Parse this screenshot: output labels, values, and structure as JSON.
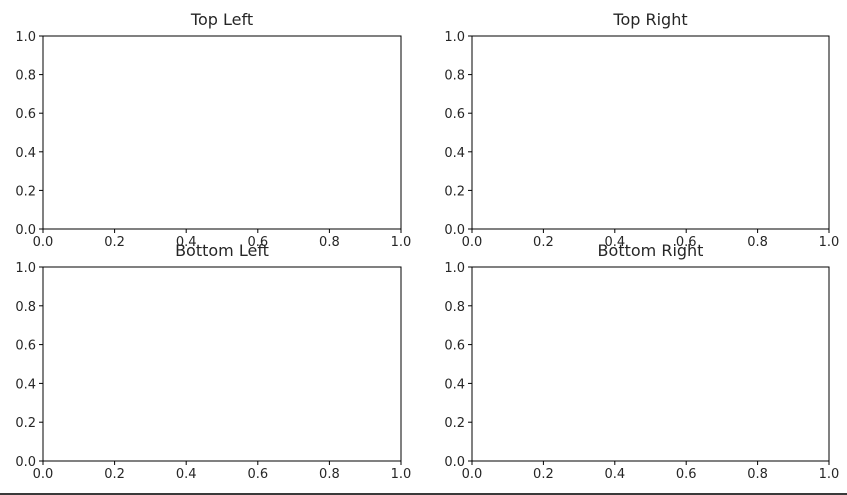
{
  "chart_data": [
    {
      "type": "line",
      "title": "Top Left",
      "xlim": [
        0.0,
        1.0
      ],
      "ylim": [
        0.0,
        1.0
      ],
      "xticks": [
        "0.0",
        "0.2",
        "0.4",
        "0.6",
        "0.8",
        "1.0"
      ],
      "yticks": [
        "0.0",
        "0.2",
        "0.4",
        "0.6",
        "0.8",
        "1.0"
      ],
      "grid": false,
      "series": []
    },
    {
      "type": "line",
      "title": "Top Right",
      "xlim": [
        0.0,
        1.0
      ],
      "ylim": [
        0.0,
        1.0
      ],
      "xticks": [
        "0.0",
        "0.2",
        "0.4",
        "0.6",
        "0.8",
        "1.0"
      ],
      "yticks": [
        "0.0",
        "0.2",
        "0.4",
        "0.6",
        "0.8",
        "1.0"
      ],
      "grid": false,
      "series": []
    },
    {
      "type": "line",
      "title": "Bottom Left",
      "xlim": [
        0.0,
        1.0
      ],
      "ylim": [
        0.0,
        1.0
      ],
      "xticks": [
        "0.0",
        "0.2",
        "0.4",
        "0.6",
        "0.8",
        "1.0"
      ],
      "yticks": [
        "0.0",
        "0.2",
        "0.4",
        "0.6",
        "0.8",
        "1.0"
      ],
      "grid": false,
      "series": []
    },
    {
      "type": "line",
      "title": "Bottom Right",
      "xlim": [
        0.0,
        1.0
      ],
      "ylim": [
        0.0,
        1.0
      ],
      "xticks": [
        "0.0",
        "0.2",
        "0.4",
        "0.6",
        "0.8",
        "1.0"
      ],
      "yticks": [
        "0.0",
        "0.2",
        "0.4",
        "0.6",
        "0.8",
        "1.0"
      ],
      "grid": false,
      "series": []
    }
  ]
}
